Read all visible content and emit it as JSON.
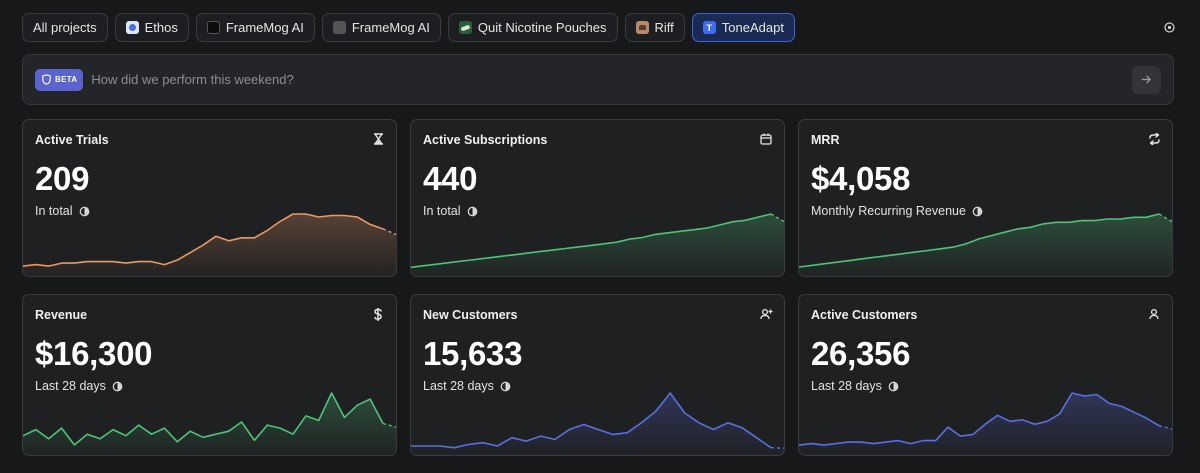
{
  "tabs": [
    {
      "label": "All projects",
      "icon": "none",
      "active": false
    },
    {
      "label": "Ethos",
      "icon": "ethos-app-icon",
      "active": false
    },
    {
      "label": "FrameMog AI",
      "icon": "framemog-app-icon",
      "active": false
    },
    {
      "label": "FrameMog AI",
      "icon": "framemog-fa-app-icon",
      "active": false
    },
    {
      "label": "Quit Nicotine Pouches",
      "icon": "quit-nicotine-app-icon",
      "active": false
    },
    {
      "label": "Riff",
      "icon": "riff-app-icon",
      "active": false
    },
    {
      "label": "ToneAdapt",
      "icon": "toneadapt-app-icon",
      "active": true
    }
  ],
  "ask": {
    "badge": "BETA",
    "placeholder": "How did we perform this weekend?"
  },
  "colors": {
    "orange": "#e89a66",
    "green": "#4fc27a",
    "blue": "#5a6fe0",
    "accent": "#3c63d8"
  },
  "cards": [
    {
      "title": "Active Trials",
      "icon": "hourglass-icon",
      "value": "209",
      "sub": "In total",
      "color": "#e89a66",
      "values": [
        4,
        5,
        4,
        6,
        6,
        7,
        7,
        7,
        6,
        7,
        7,
        5,
        8,
        13,
        18,
        24,
        21,
        23,
        23,
        28,
        34,
        39,
        39,
        37,
        38,
        38,
        37,
        32,
        29
      ]
    },
    {
      "title": "Active Subscriptions",
      "icon": "calendar-icon",
      "value": "440",
      "sub": "In total",
      "color": "#4fc27a",
      "values": [
        3,
        4,
        5,
        6,
        7,
        8,
        9,
        10,
        11,
        12,
        13,
        14,
        15,
        16,
        17,
        18,
        19,
        21,
        22,
        24,
        25,
        26,
        27,
        28,
        30,
        32,
        33,
        35,
        37
      ]
    },
    {
      "title": "MRR",
      "icon": "repeat-arrows-icon",
      "value": "$4,058",
      "sub": "Monthly Recurring Revenue",
      "color": "#4fc27a",
      "values": [
        3,
        4,
        5,
        6,
        7,
        8,
        9,
        10,
        11,
        12,
        13,
        14,
        15,
        17,
        20,
        22,
        24,
        26,
        27,
        29,
        30,
        30,
        31,
        31,
        32,
        32,
        33,
        33,
        35
      ]
    },
    {
      "title": "Revenue",
      "icon": "dollar-icon",
      "value": "$16,300",
      "sub": "Last 28 days",
      "color": "#4fc27a",
      "values": [
        10,
        14,
        8,
        15,
        4,
        11,
        8,
        14,
        10,
        17,
        11,
        15,
        6,
        13,
        9,
        11,
        13,
        19,
        7,
        17,
        15,
        11,
        23,
        20,
        38,
        22,
        30,
        34,
        18
      ]
    },
    {
      "title": "New Customers",
      "icon": "user-plus-icon",
      "value": "15,633",
      "sub": "Last 28 days",
      "color": "#5a6fe0",
      "values": [
        3,
        3,
        3,
        2,
        4,
        5,
        3,
        8,
        6,
        9,
        7,
        13,
        16,
        13,
        10,
        11,
        17,
        24,
        35,
        23,
        17,
        13,
        17,
        14,
        8,
        2
      ]
    },
    {
      "title": "Active Customers",
      "icon": "user-icon",
      "value": "26,356",
      "sub": "Last 28 days",
      "color": "#5a6fe0",
      "values": [
        4,
        5,
        4,
        5,
        6,
        6,
        5,
        6,
        7,
        5,
        7,
        7,
        16,
        10,
        11,
        18,
        24,
        20,
        21,
        18,
        20,
        25,
        39,
        37,
        38,
        32,
        30,
        26,
        22,
        17
      ]
    }
  ]
}
